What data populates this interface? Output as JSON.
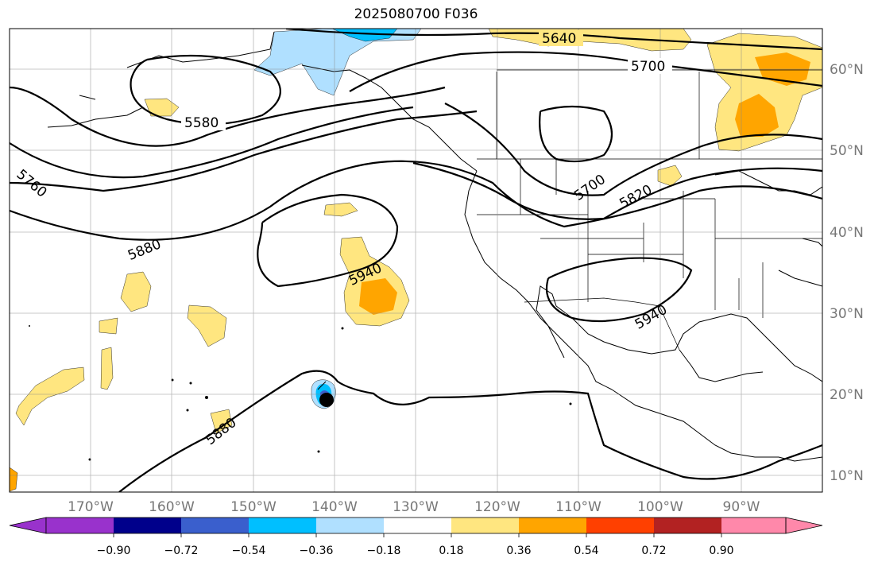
{
  "title": "2025080700 F036",
  "lon_labels": [
    "170°W",
    "160°W",
    "150°W",
    "140°W",
    "130°W",
    "120°W",
    "110°W",
    "100°W",
    "90°W"
  ],
  "lat_labels": [
    "60°N",
    "50°N",
    "40°N",
    "30°N",
    "20°N",
    "10°N"
  ],
  "contour_labels": [
    "5640",
    "5700",
    "5580",
    "5760",
    "5700",
    "5820",
    "5880",
    "5940",
    "5940",
    "5880"
  ],
  "colorbar": {
    "ticks": [
      "−0.90",
      "−0.72",
      "−0.54",
      "−0.36",
      "−0.18",
      "0.18",
      "0.36",
      "0.54",
      "0.72",
      "0.90"
    ],
    "colors": [
      "#9932cc",
      "#00008b",
      "#3a5fcd",
      "#00bfff",
      "#b0e0ff",
      "#ffffff",
      "#ffe680",
      "#ffa500",
      "#ff4000",
      "#b22222",
      "#ff88aa"
    ]
  },
  "fill_colors": {
    "pos_low": "#ffe680",
    "pos_mid": "#ffa500",
    "neg_low": "#b0e0ff",
    "neg_mid": "#00bfff",
    "neg_high": "#3a5fcd"
  }
}
